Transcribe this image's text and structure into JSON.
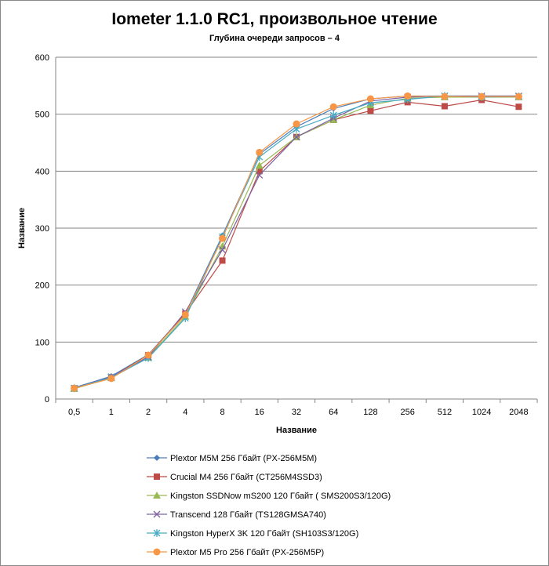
{
  "chart_data": {
    "type": "line",
    "title": "Iometer 1.1.0 RC1, произвольное чтение",
    "subtitle": "Глубина очереди запросов – 4",
    "xlabel": "Название",
    "ylabel": "Название",
    "ylim": [
      0,
      600
    ],
    "yticks": [
      0,
      100,
      200,
      300,
      400,
      500,
      600
    ],
    "grid": true,
    "legend": "bottom",
    "categories": [
      "0,5",
      "1",
      "2",
      "4",
      "8",
      "16",
      "32",
      "64",
      "128",
      "256",
      "512",
      "1024",
      "2048"
    ],
    "series": [
      {
        "name": "Plextor M5M 256 Гбайт (PX-256M5M)",
        "color": "#4a7ebb",
        "marker": "diamond",
        "values": [
          20,
          40,
          78,
          150,
          287,
          430,
          478,
          510,
          527,
          532,
          532,
          532,
          532
        ]
      },
      {
        "name": "Crucial M4 256 Гбайт (CT256M4SSD3)",
        "color": "#be4b48",
        "marker": "square",
        "values": [
          19,
          38,
          77,
          150,
          243,
          400,
          460,
          490,
          506,
          521,
          514,
          525,
          513
        ]
      },
      {
        "name": "Kingston SSDNow  mS200 120 Гбайт ( SMS200S3/120G)",
        "color": "#98b954",
        "marker": "triangle",
        "values": [
          18,
          37,
          73,
          145,
          268,
          410,
          460,
          490,
          516,
          528,
          530,
          530,
          530
        ]
      },
      {
        "name": "Transcend 128 Гбайт (TS128GMSA740)",
        "color": "#7d60a0",
        "marker": "x",
        "values": [
          19,
          39,
          74,
          153,
          262,
          393,
          460,
          493,
          523,
          530,
          532,
          532,
          532
        ]
      },
      {
        "name": "Kingston HyperX 3K 120 Гбайт (SH103S3/120G)",
        "color": "#46aac5",
        "marker": "star",
        "values": [
          19,
          38,
          72,
          142,
          285,
          425,
          474,
          498,
          520,
          526,
          532,
          530,
          531
        ]
      },
      {
        "name": "Plextor M5 Pro 256 Гбайт (PX-256M5P)",
        "color": "#f79646",
        "marker": "circle",
        "values": [
          19,
          36,
          77,
          148,
          282,
          433,
          483,
          513,
          527,
          532,
          531,
          531,
          531
        ]
      }
    ]
  }
}
